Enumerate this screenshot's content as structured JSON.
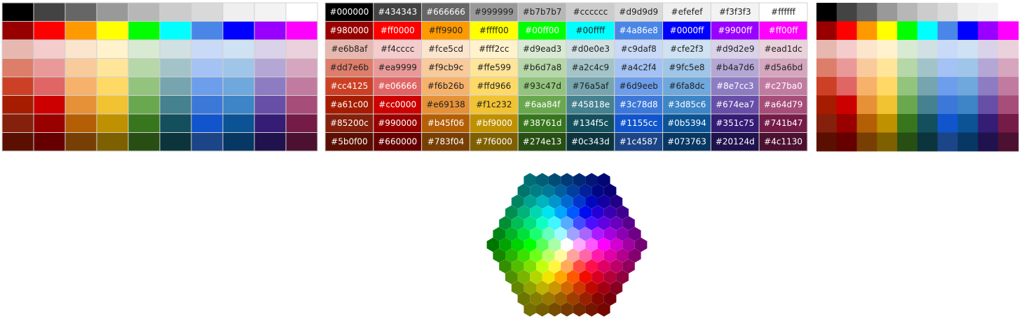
{
  "palette": {
    "rows": [
      [
        "#000000",
        "#434343",
        "#666666",
        "#999999",
        "#b7b7b7",
        "#cccccc",
        "#d9d9d9",
        "#efefef",
        "#f3f3f3",
        "#ffffff"
      ],
      [
        "#980000",
        "#ff0000",
        "#ff9900",
        "#ffff00",
        "#00ff00",
        "#00ffff",
        "#4a86e8",
        "#0000ff",
        "#9900ff",
        "#ff00ff"
      ],
      [
        "#e6b8af",
        "#f4cccc",
        "#fce5cd",
        "#fff2cc",
        "#d9ead3",
        "#d0e0e3",
        "#c9daf8",
        "#cfe2f3",
        "#d9d2e9",
        "#ead1dc"
      ],
      [
        "#dd7e6b",
        "#ea9999",
        "#f9cb9c",
        "#ffe599",
        "#b6d7a8",
        "#a2c4c9",
        "#a4c2f4",
        "#9fc5e8",
        "#b4a7d6",
        "#d5a6bd"
      ],
      [
        "#cc4125",
        "#e06666",
        "#f6b26b",
        "#ffd966",
        "#93c47d",
        "#76a5af",
        "#6d9eeb",
        "#6fa8dc",
        "#8e7cc3",
        "#c27ba0"
      ],
      [
        "#a61c00",
        "#cc0000",
        "#e69138",
        "#f1c232",
        "#6aa84f",
        "#45818e",
        "#3c78d8",
        "#3d85c6",
        "#674ea7",
        "#a64d79"
      ],
      [
        "#85200c",
        "#990000",
        "#b45f06",
        "#bf9000",
        "#38761d",
        "#134f5c",
        "#1155cc",
        "#0b5394",
        "#351c75",
        "#741b47"
      ],
      [
        "#5b0f00",
        "#660000",
        "#783f04",
        "#7f6000",
        "#274e13",
        "#0c343d",
        "#1c4587",
        "#073763",
        "#20124d",
        "#4c1130"
      ]
    ]
  }
}
